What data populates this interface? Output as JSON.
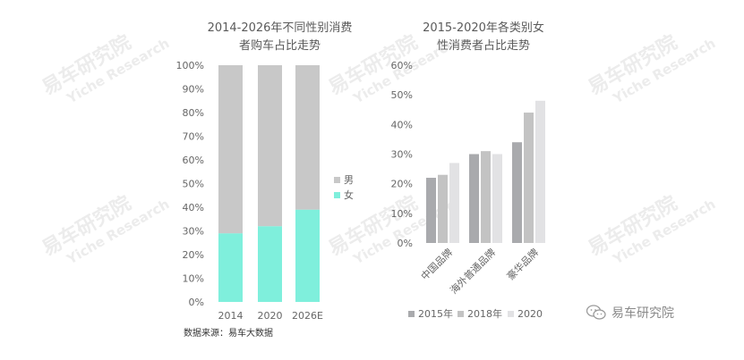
{
  "charts": {
    "gender_trend": {
      "title_line1": "2014-2026年不同性别消费",
      "title_line2": "者购车占比走势"
    },
    "female_by_category": {
      "title_line1": "2015-2020年各类别女",
      "title_line2": "性消费者占比走势"
    }
  },
  "source_note": "数据来源：易车大数据",
  "brand": {
    "wechat_label": "易车研究院"
  },
  "watermark": {
    "cn": "易车研究院",
    "en": "Yiche Research"
  },
  "colors": {
    "male": "#c8c8c8",
    "female": "#7fefdc",
    "s2015": "#a9aaad",
    "s2018": "#c3c3c3",
    "s2020": "#e2e2e4",
    "axis_text": "#666666"
  },
  "chart_data": [
    {
      "type": "bar",
      "stacked": true,
      "title": "2014-2026年不同性别消费者购车占比走势",
      "categories": [
        "2014",
        "2020",
        "2026E"
      ],
      "series": [
        {
          "name": "女",
          "values": [
            29,
            32,
            39
          ]
        },
        {
          "name": "男",
          "values": [
            71,
            68,
            61
          ]
        }
      ],
      "ylim": [
        0,
        100
      ],
      "yticks": [
        "0%",
        "10%",
        "20%",
        "30%",
        "40%",
        "50%",
        "60%",
        "70%",
        "80%",
        "90%",
        "100%"
      ],
      "legend": "right"
    },
    {
      "type": "bar",
      "title": "2015-2020年各类别女性消费者占比走势",
      "categories": [
        "中国品牌",
        "海外普通品牌",
        "豪华品牌"
      ],
      "series": [
        {
          "name": "2015年",
          "values": [
            22,
            30,
            34
          ]
        },
        {
          "name": "2018年",
          "values": [
            23,
            31,
            44
          ]
        },
        {
          "name": "2020",
          "values": [
            27,
            30,
            48
          ]
        }
      ],
      "ylim": [
        0,
        60
      ],
      "yticks": [
        "0%",
        "10%",
        "20%",
        "30%",
        "40%",
        "50%",
        "60%"
      ],
      "legend": "bottom"
    }
  ]
}
